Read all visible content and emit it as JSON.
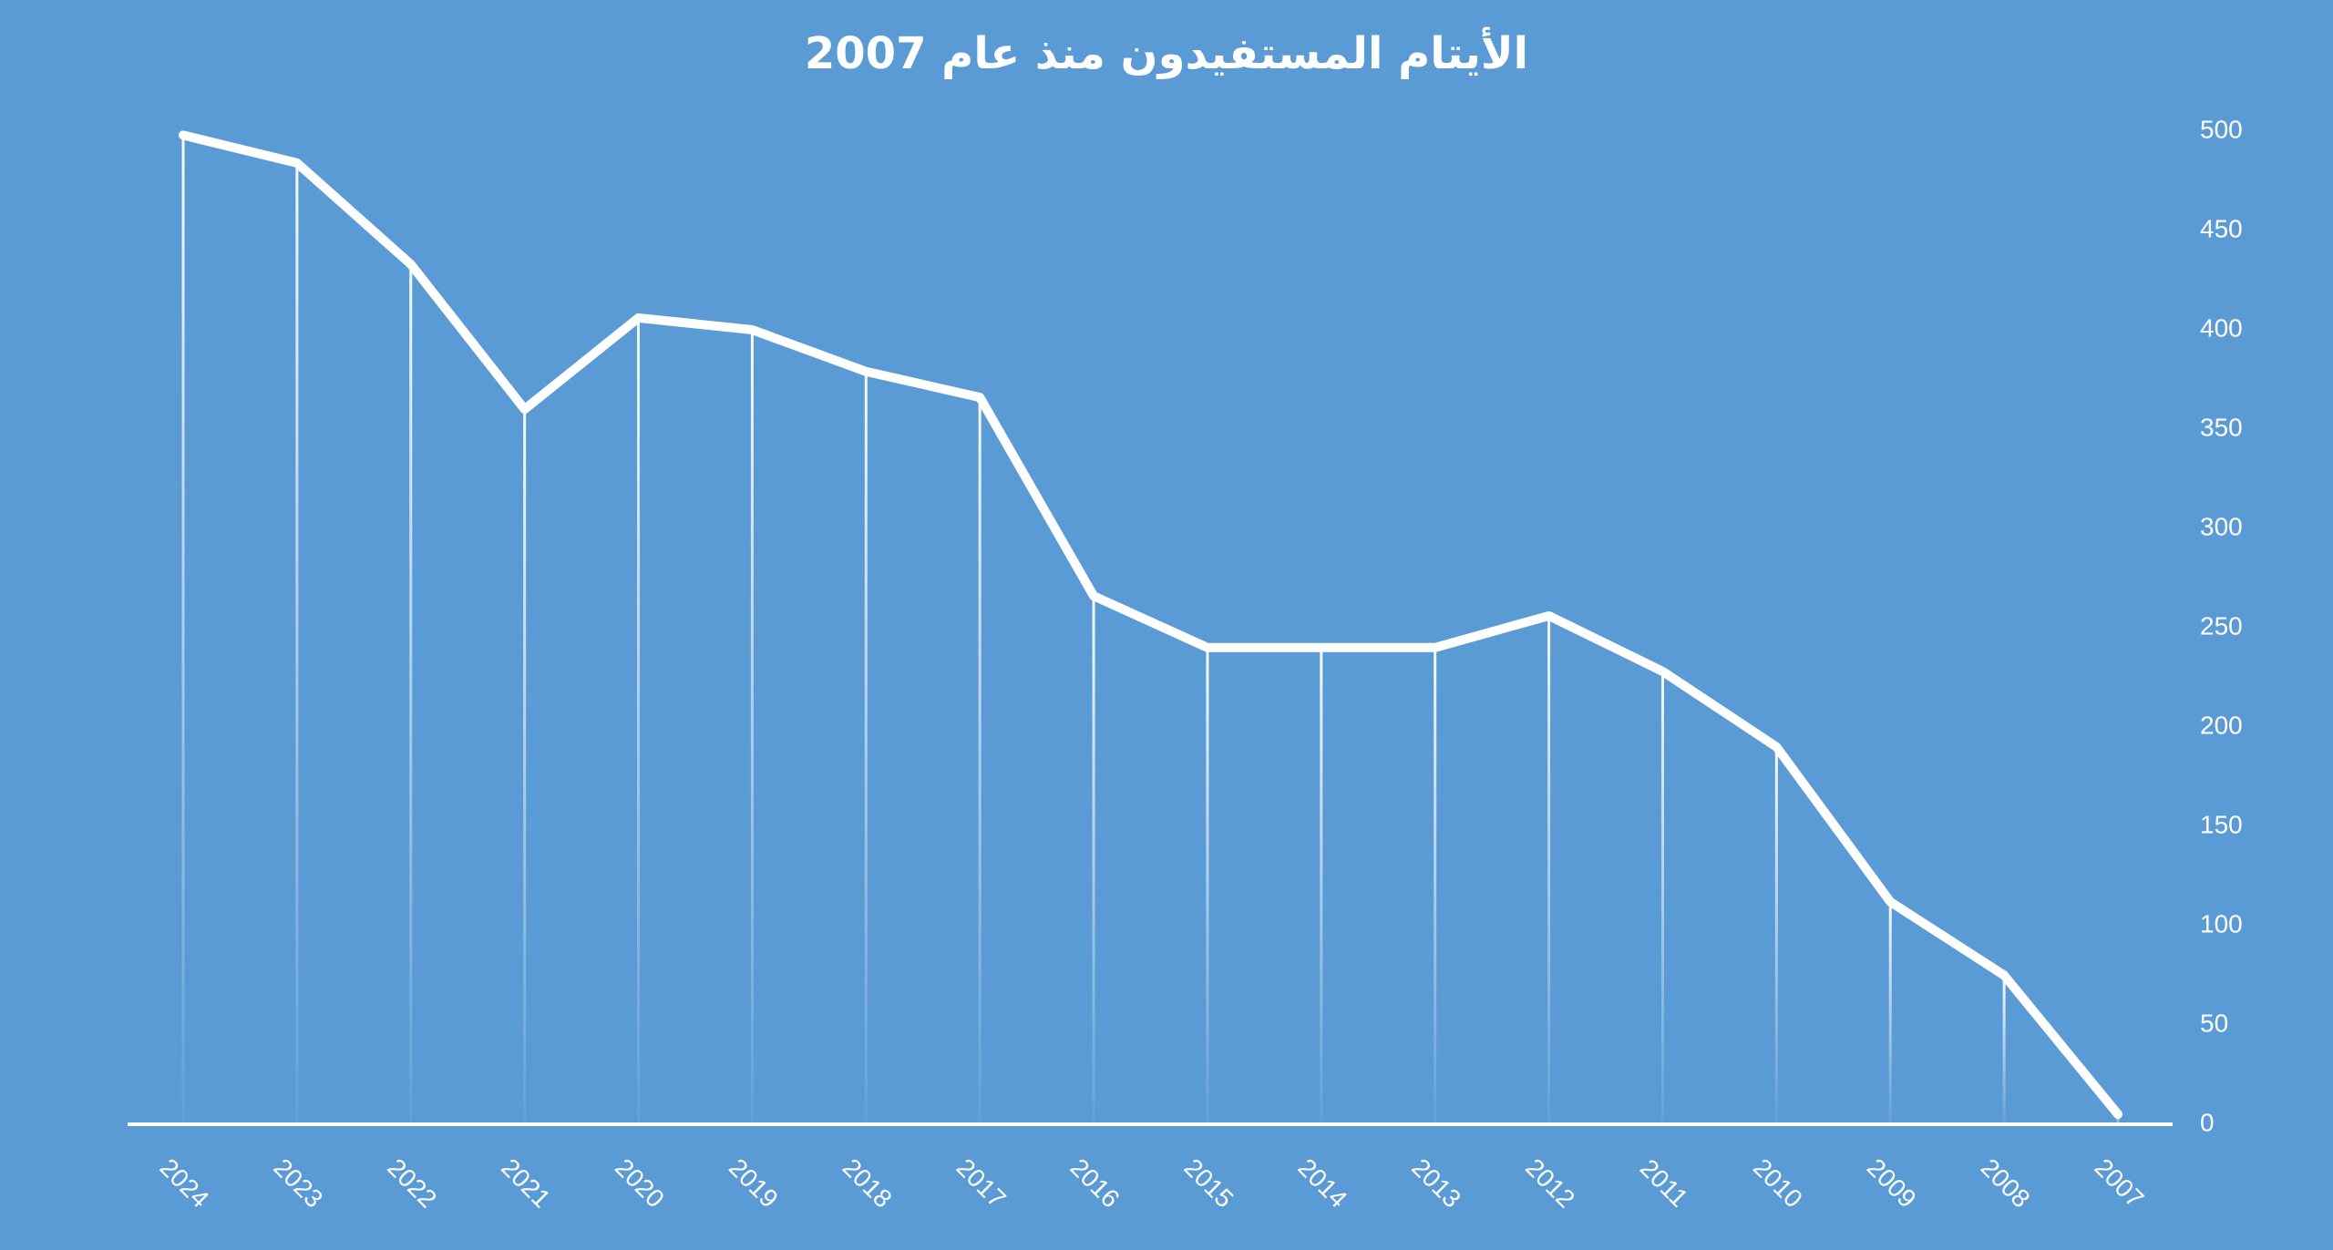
{
  "chart_data": {
    "type": "line",
    "title": "الأيتام المستفيدون منذ عام 2007",
    "categories": [
      "2024",
      "2023",
      "2022",
      "2021",
      "2020",
      "2019",
      "2018",
      "2017",
      "2016",
      "2015",
      "2014",
      "2013",
      "2012",
      "2011",
      "2010",
      "2009",
      "2008",
      "2007"
    ],
    "series": [
      {
        "name": "الأيتام المستفيدون",
        "color": "#ffffff",
        "values": [
          498,
          484,
          433,
          360,
          406,
          400,
          379,
          366,
          266,
          240,
          240,
          240,
          256,
          228,
          190,
          112,
          75,
          5
        ]
      }
    ],
    "ylim": [
      0,
      500
    ],
    "yticks": [
      0,
      50,
      100,
      150,
      200,
      250,
      300,
      350,
      400,
      450,
      500
    ],
    "y_axis_position": "right",
    "grid": false,
    "drop_lines": true,
    "legend": false
  }
}
